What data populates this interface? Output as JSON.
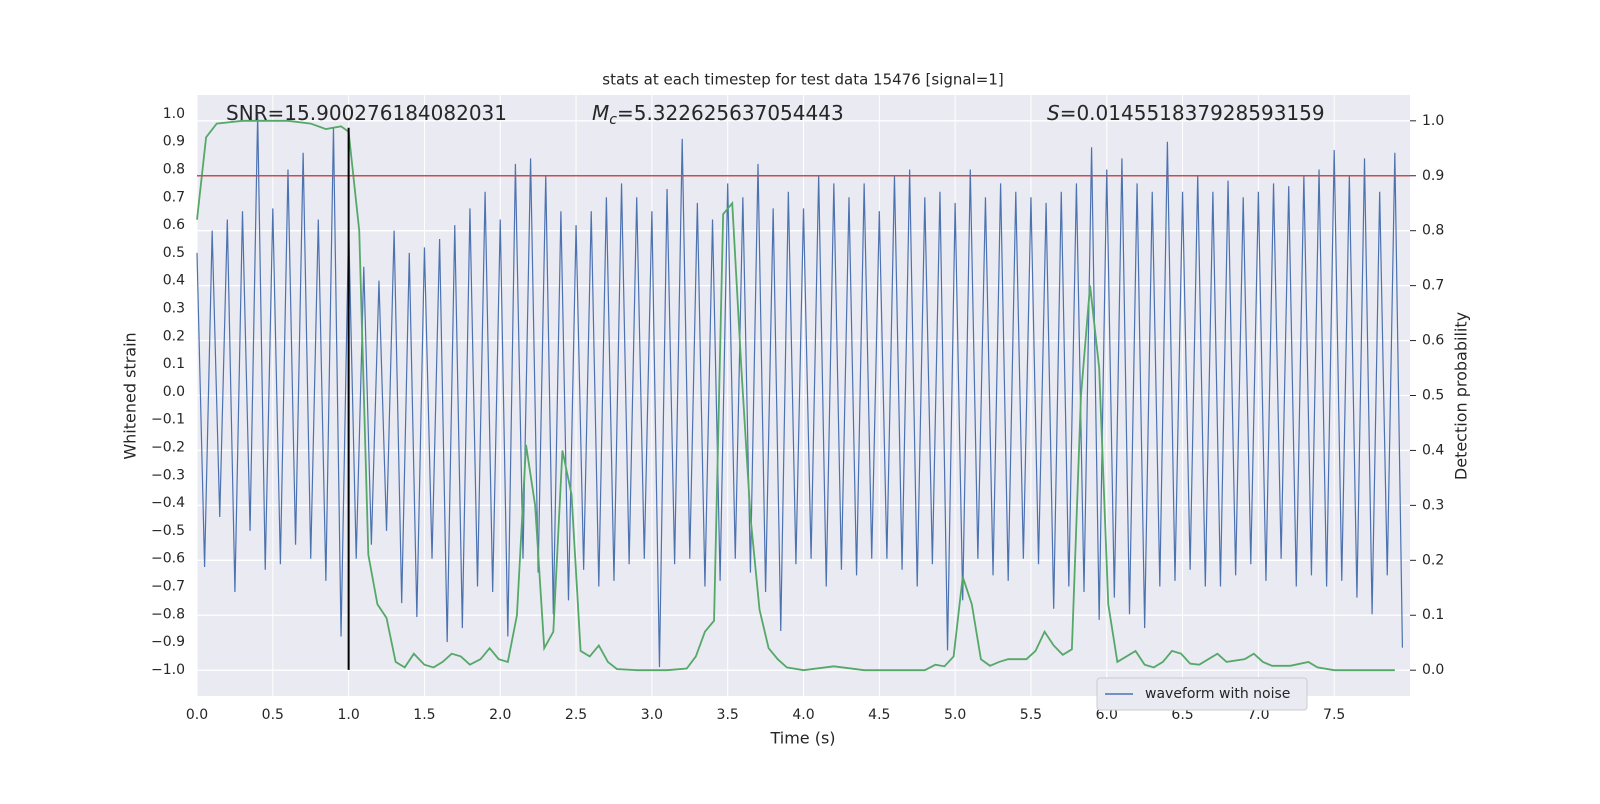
{
  "chart_data": {
    "type": "line",
    "title": "stats at each timestep for test data 15476 [signal=1]",
    "xlabel": "Time (s)",
    "ylabel": "Whitened strain",
    "y2label": "Detection probability",
    "xlim": [
      0,
      8.0
    ],
    "ylim": [
      -1.094,
      1.068
    ],
    "y2lim": [
      -0.047,
      1.047
    ],
    "xticks": [
      {
        "value": 0,
        "label": "0.0"
      },
      {
        "value": 0.5,
        "label": "0.5"
      },
      {
        "value": 1,
        "label": "1.0"
      },
      {
        "value": 1.5,
        "label": "1.5"
      },
      {
        "value": 2,
        "label": "2.0"
      },
      {
        "value": 2.5,
        "label": "2.5"
      },
      {
        "value": 3,
        "label": "3.0"
      },
      {
        "value": 3.5,
        "label": "3.5"
      },
      {
        "value": 4,
        "label": "4.0"
      },
      {
        "value": 4.5,
        "label": "4.5"
      },
      {
        "value": 5,
        "label": "5.0"
      },
      {
        "value": 5.5,
        "label": "5.5"
      },
      {
        "value": 6,
        "label": "6.0"
      },
      {
        "value": 6.5,
        "label": "6.5"
      },
      {
        "value": 7,
        "label": "7.0"
      },
      {
        "value": 7.5,
        "label": "7.5"
      }
    ],
    "yticks": [
      {
        "value": -1,
        "label": "−1.0"
      },
      {
        "value": -0.9,
        "label": "−0.9"
      },
      {
        "value": -0.8,
        "label": "−0.8"
      },
      {
        "value": -0.7,
        "label": "−0.7"
      },
      {
        "value": -0.6,
        "label": "−0.6"
      },
      {
        "value": -0.5,
        "label": "−0.5"
      },
      {
        "value": -0.4,
        "label": "−0.4"
      },
      {
        "value": -0.3,
        "label": "−0.3"
      },
      {
        "value": -0.2,
        "label": "−0.2"
      },
      {
        "value": -0.1,
        "label": "−0.1"
      },
      {
        "value": 0,
        "label": "0.0"
      },
      {
        "value": 0.1,
        "label": "0.1"
      },
      {
        "value": 0.2,
        "label": "0.2"
      },
      {
        "value": 0.3,
        "label": "0.3"
      },
      {
        "value": 0.4,
        "label": "0.4"
      },
      {
        "value": 0.5,
        "label": "0.5"
      },
      {
        "value": 0.6,
        "label": "0.6"
      },
      {
        "value": 0.7,
        "label": "0.7"
      },
      {
        "value": 0.8,
        "label": "0.8"
      },
      {
        "value": 0.9,
        "label": "0.9"
      },
      {
        "value": 1,
        "label": "1.0"
      }
    ],
    "y2ticks": [
      {
        "value": 0,
        "label": "0.0"
      },
      {
        "value": 0.1,
        "label": "0.1"
      },
      {
        "value": 0.2,
        "label": "0.2"
      },
      {
        "value": 0.3,
        "label": "0.3"
      },
      {
        "value": 0.4,
        "label": "0.4"
      },
      {
        "value": 0.5,
        "label": "0.5"
      },
      {
        "value": 0.6,
        "label": "0.6"
      },
      {
        "value": 0.7,
        "label": "0.7"
      },
      {
        "value": 0.8,
        "label": "0.8"
      },
      {
        "value": 0.9,
        "label": "0.9"
      },
      {
        "value": 1,
        "label": "1.0"
      }
    ],
    "grid": [
      "x",
      "y2"
    ],
    "legend": "lower right",
    "series": [
      {
        "name": "waveform with noise",
        "color": "#4c72b0",
        "x": [
          0,
          0.05,
          0.1,
          0.15,
          0.2,
          0.25,
          0.3,
          0.35,
          0.4,
          0.45,
          0.5,
          0.55,
          0.6,
          0.65,
          0.7,
          0.75,
          0.8,
          0.85,
          0.9,
          0.95,
          1,
          1.05,
          1.1,
          1.15,
          1.2,
          1.25,
          1.3,
          1.35,
          1.4,
          1.45,
          1.5,
          1.55,
          1.6,
          1.65,
          1.7,
          1.75,
          1.8,
          1.85,
          1.9,
          1.95,
          2,
          2.05,
          2.1,
          2.15,
          2.2,
          2.25,
          2.3,
          2.35,
          2.4,
          2.45,
          2.5,
          2.55,
          2.6,
          2.65,
          2.7,
          2.75,
          2.8,
          2.85,
          2.9,
          2.95,
          3,
          3.05,
          3.1,
          3.15,
          3.2,
          3.25,
          3.3,
          3.35,
          3.4,
          3.45,
          3.5,
          3.55,
          3.6,
          3.65,
          3.7,
          3.75,
          3.8,
          3.85,
          3.9,
          3.95,
          4,
          4.05,
          4.1,
          4.15,
          4.2,
          4.25,
          4.3,
          4.35,
          4.4,
          4.45,
          4.5,
          4.55,
          4.6,
          4.65,
          4.7,
          4.75,
          4.8,
          4.85,
          4.9,
          4.95,
          5,
          5.05,
          5.1,
          5.15,
          5.2,
          5.25,
          5.3,
          5.35,
          5.4,
          5.45,
          5.5,
          5.55,
          5.6,
          5.65,
          5.7,
          5.75,
          5.8,
          5.85,
          5.9,
          5.95,
          6,
          6.05,
          6.1,
          6.15,
          6.2,
          6.25,
          6.3,
          6.35,
          6.4,
          6.45,
          6.5,
          6.55,
          6.6,
          6.65,
          6.7,
          6.75,
          6.8,
          6.85,
          6.9,
          6.95,
          7,
          7.05,
          7.1,
          7.15,
          7.2,
          7.25,
          7.3,
          7.35,
          7.4,
          7.45,
          7.5,
          7.55,
          7.6,
          7.65,
          7.7,
          7.75,
          7.8,
          7.85,
          7.9,
          7.95
        ],
        "values": [
          0.5,
          -0.63,
          0.58,
          -0.45,
          0.62,
          -0.72,
          0.65,
          -0.5,
          1.0,
          -0.64,
          0.66,
          -0.62,
          0.8,
          -0.55,
          0.86,
          -0.6,
          0.62,
          -0.68,
          0.95,
          -0.88,
          0.6,
          -0.6,
          0.45,
          -0.55,
          0.4,
          -0.5,
          0.58,
          -0.76,
          0.5,
          -0.81,
          0.52,
          -0.6,
          0.55,
          -0.9,
          0.6,
          -0.85,
          0.66,
          -0.7,
          0.72,
          -0.72,
          0.62,
          -0.88,
          0.82,
          -0.6,
          0.84,
          -0.65,
          0.78,
          -0.8,
          0.65,
          -0.75,
          0.6,
          -0.64,
          0.65,
          -0.7,
          0.7,
          -0.68,
          0.75,
          -0.62,
          0.7,
          -0.6,
          0.65,
          -0.99,
          0.73,
          -0.62,
          0.91,
          -0.6,
          0.68,
          -0.7,
          0.62,
          -0.68,
          0.75,
          -0.6,
          0.7,
          -0.65,
          0.82,
          -0.72,
          0.66,
          -0.86,
          0.72,
          -0.62,
          0.66,
          -0.6,
          0.78,
          -0.7,
          0.75,
          -0.64,
          0.7,
          -0.66,
          0.75,
          -0.6,
          0.65,
          -0.6,
          0.78,
          -0.64,
          0.8,
          -0.7,
          0.7,
          -0.62,
          0.72,
          -0.93,
          0.68,
          -0.75,
          0.8,
          -0.6,
          0.7,
          -0.66,
          0.75,
          -0.68,
          0.72,
          -0.6,
          0.7,
          -0.62,
          0.68,
          -0.78,
          0.72,
          -0.7,
          0.75,
          -0.72,
          0.88,
          -0.82,
          0.8,
          -0.74,
          0.84,
          -0.8,
          0.75,
          -0.85,
          0.72,
          -0.7,
          0.9,
          -0.68,
          0.72,
          -0.64,
          0.78,
          -0.7,
          0.72,
          -0.7,
          0.76,
          -0.66,
          0.7,
          -0.62,
          0.72,
          -0.68,
          0.75,
          -0.6,
          0.74,
          -0.7,
          0.78,
          -0.66,
          0.8,
          -0.7,
          0.87,
          -0.68,
          0.78,
          -0.74,
          0.84,
          -0.8,
          0.72,
          -0.66,
          0.86,
          -0.92
        ]
      },
      {
        "color": "#55a868",
        "axis": "y2",
        "x": [
          0,
          0.06,
          0.13,
          0.3,
          0.6,
          0.75,
          0.85,
          0.95,
          1,
          1.07,
          1.13,
          1.19,
          1.25,
          1.31,
          1.37,
          1.43,
          1.5,
          1.56,
          1.62,
          1.68,
          1.74,
          1.8,
          1.87,
          1.93,
          1.99,
          2.05,
          2.11,
          2.17,
          2.23,
          2.29,
          2.35,
          2.41,
          2.47,
          2.53,
          2.59,
          2.65,
          2.71,
          2.77,
          2.9,
          3.1,
          3.23,
          3.29,
          3.35,
          3.41,
          3.47,
          3.53,
          3.59,
          3.65,
          3.71,
          3.77,
          3.83,
          3.89,
          4,
          4.2,
          4.4,
          4.8,
          4.87,
          4.93,
          4.99,
          5.05,
          5.11,
          5.17,
          5.23,
          5.29,
          5.35,
          5.47,
          5.53,
          5.59,
          5.65,
          5.71,
          5.77,
          5.83,
          5.89,
          5.95,
          6.01,
          6.07,
          6.13,
          6.19,
          6.25,
          6.31,
          6.37,
          6.43,
          6.49,
          6.55,
          6.61,
          6.73,
          6.79,
          6.91,
          6.97,
          7.03,
          7.09,
          7.21,
          7.33,
          7.39,
          7.5,
          7.9
        ],
        "values": [
          0.82,
          0.97,
          0.995,
          1.0,
          1.0,
          0.995,
          0.985,
          0.99,
          0.98,
          0.8,
          0.21,
          0.12,
          0.095,
          0.015,
          0.005,
          0.03,
          0.01,
          0.005,
          0.015,
          0.03,
          0.025,
          0.01,
          0.02,
          0.04,
          0.02,
          0.015,
          0.1,
          0.41,
          0.3,
          0.04,
          0.07,
          0.4,
          0.32,
          0.035,
          0.025,
          0.045,
          0.015,
          0.002,
          0.0,
          0.0,
          0.003,
          0.025,
          0.07,
          0.09,
          0.83,
          0.85,
          0.55,
          0.28,
          0.11,
          0.04,
          0.02,
          0.005,
          0.0,
          0.007,
          0.0,
          0.0,
          0.01,
          0.007,
          0.025,
          0.17,
          0.12,
          0.02,
          0.008,
          0.015,
          0.02,
          0.02,
          0.035,
          0.07,
          0.045,
          0.028,
          0.038,
          0.5,
          0.7,
          0.55,
          0.12,
          0.015,
          0.025,
          0.035,
          0.01,
          0.005,
          0.015,
          0.035,
          0.03,
          0.012,
          0.01,
          0.03,
          0.015,
          0.02,
          0.03,
          0.015,
          0.008,
          0.008,
          0.015,
          0.005,
          0.0,
          0.0
        ]
      }
    ],
    "hline": {
      "y": 0.9,
      "axis": "y2",
      "color": "#c44e52"
    },
    "vline": {
      "x": 1.0,
      "ymin": -1.0,
      "ymax": 0.95,
      "color": "#000000"
    },
    "annotations": [
      {
        "text": "SNR=15.900276184082031"
      },
      {
        "symbol": "M",
        "subscript": "c",
        "text": "=5.322625637054443"
      },
      {
        "symbol": "S",
        "text": "=0.014551837928593159"
      }
    ]
  }
}
